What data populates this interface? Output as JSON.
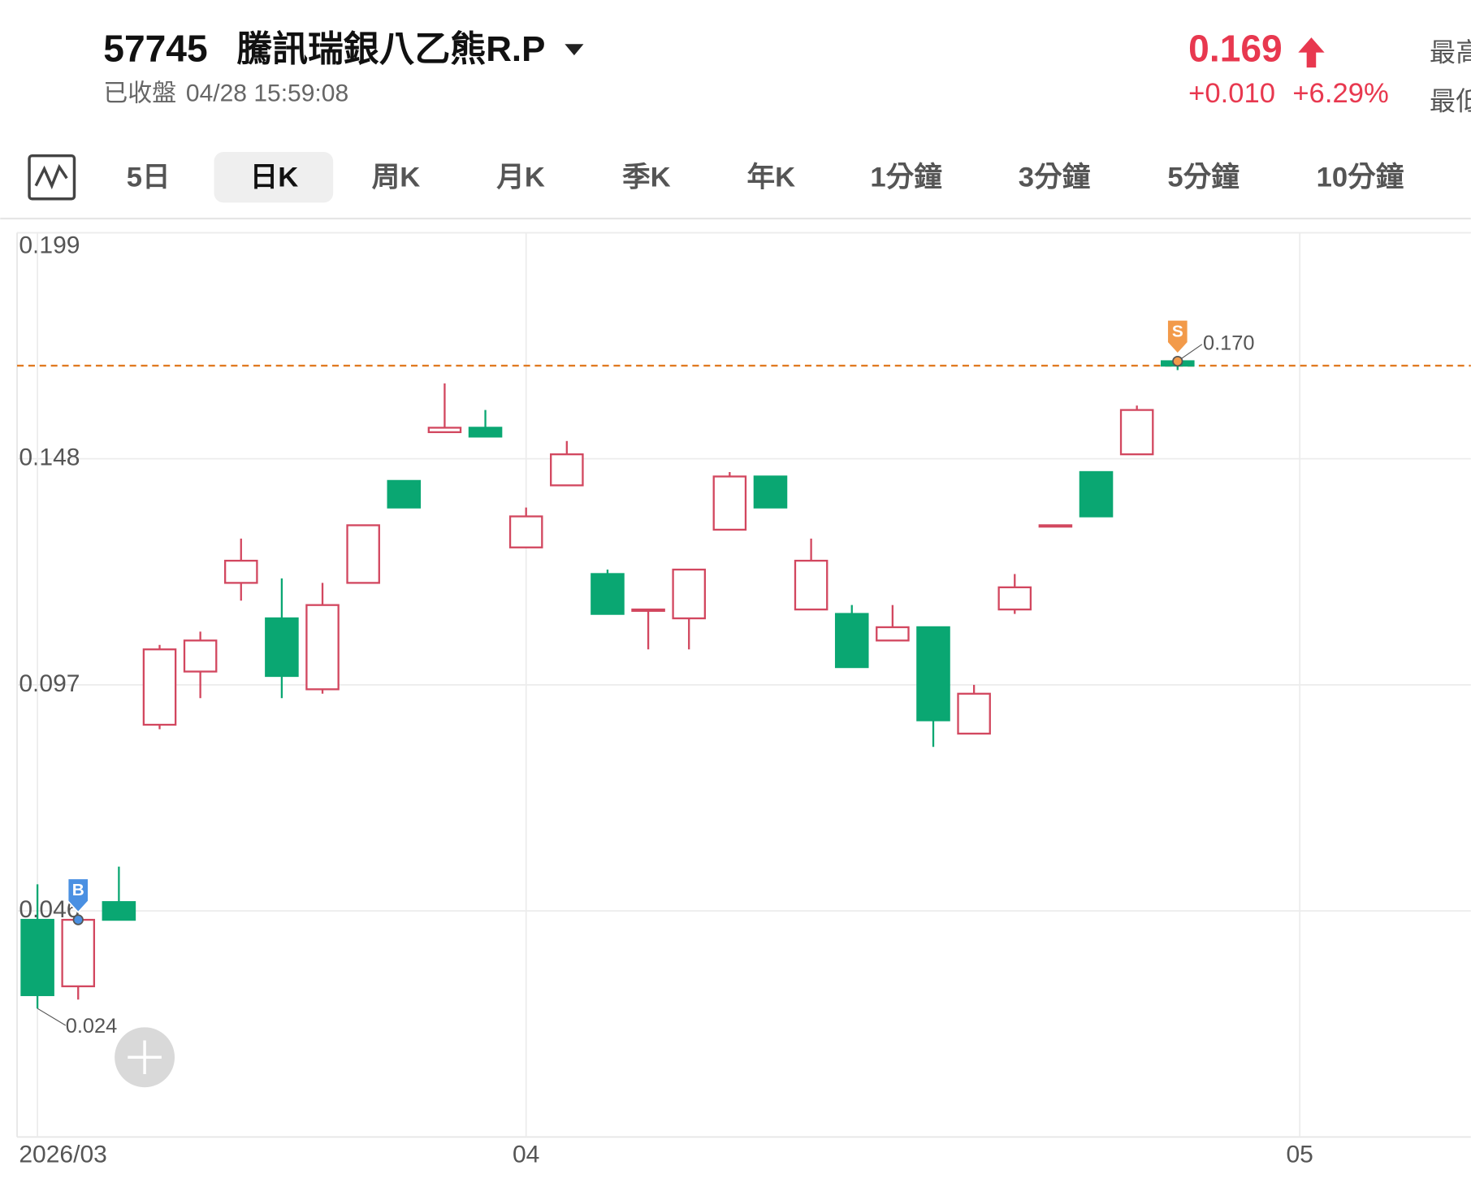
{
  "header": {
    "code": "57745",
    "name": "騰訊瑞銀八乙熊R.P",
    "status": "已收盤",
    "time": "04/28 15:59:08",
    "price": "0.169",
    "change": "+0.010",
    "change_pct": "+6.29%",
    "labels": [
      "最高",
      "最低"
    ]
  },
  "tabs": [
    "5日",
    "日K",
    "周K",
    "月K",
    "季K",
    "年K",
    "1分鐘",
    "3分鐘",
    "5分鐘",
    "10分鐘"
  ],
  "selected_tab": 1,
  "chart_data": {
    "type": "candlestick",
    "open": [
      0.044,
      0.029,
      0.048,
      0.088,
      0.1,
      0.12,
      0.112,
      0.096,
      0.12,
      0.143,
      0.154,
      0.155,
      0.128,
      0.142,
      0.122,
      0.114,
      0.112,
      0.132,
      0.144,
      0.114,
      0.113,
      0.107,
      0.11,
      0.086,
      0.114,
      0.133,
      0.145,
      0.149,
      0.17
    ],
    "high": [
      0.052,
      0.045,
      0.056,
      0.106,
      0.109,
      0.13,
      0.121,
      0.12,
      0.133,
      0.143,
      0.165,
      0.159,
      0.137,
      0.152,
      0.123,
      0.114,
      0.123,
      0.145,
      0.144,
      0.13,
      0.115,
      0.115,
      0.11,
      0.097,
      0.122,
      0.133,
      0.145,
      0.16,
      0.17
    ],
    "low": [
      0.024,
      0.026,
      0.044,
      0.087,
      0.094,
      0.116,
      0.094,
      0.095,
      0.12,
      0.137,
      0.154,
      0.153,
      0.128,
      0.142,
      0.113,
      0.105,
      0.105,
      0.132,
      0.137,
      0.114,
      0.101,
      0.107,
      0.083,
      0.086,
      0.113,
      0.133,
      0.135,
      0.149,
      0.168
    ],
    "close": [
      0.027,
      0.044,
      0.044,
      0.105,
      0.107,
      0.125,
      0.099,
      0.115,
      0.133,
      0.137,
      0.155,
      0.153,
      0.135,
      0.149,
      0.113,
      0.114,
      0.123,
      0.144,
      0.137,
      0.125,
      0.101,
      0.11,
      0.089,
      0.095,
      0.119,
      0.133,
      0.135,
      0.159,
      0.169
    ],
    "xlim": [
      -0.5,
      35.2
    ],
    "xticks": [
      {
        "value": 0,
        "label": "2026/03"
      },
      {
        "value": 12,
        "label": "04"
      },
      {
        "value": 31,
        "label": "05"
      }
    ],
    "ylim": [
      -0.005,
      0.199
    ],
    "yticks": [
      0.046,
      0.097,
      0.148,
      0.199
    ],
    "up_color": "#d2475f",
    "down_color": "#0aa772",
    "last_price": 0.169,
    "last_price_color": "#e07a22",
    "high_label": {
      "value": 0.17,
      "label": "0.170"
    },
    "low_label": {
      "value": 0.024,
      "label": "0.024"
    },
    "trades": [
      {
        "label": "B",
        "at": 1,
        "price": 0.044,
        "color": "#4a90e2"
      },
      {
        "label": "S",
        "at": 28,
        "price": 0.17,
        "color": "#f29a4a"
      }
    ]
  }
}
